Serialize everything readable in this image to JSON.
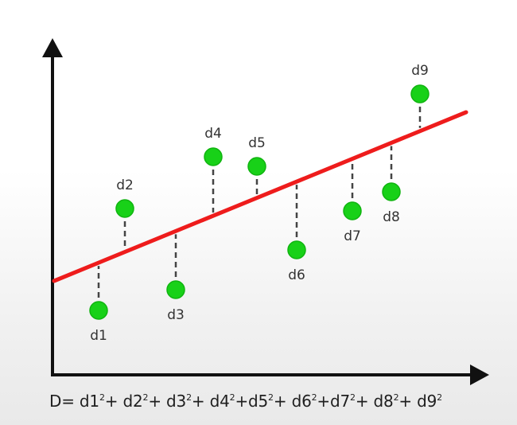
{
  "diagram": {
    "colors": {
      "axis": "#111111",
      "regression_line": "#ee1c1c",
      "point_fill": "#18d118",
      "point_stroke": "#10b410",
      "residual": "#444444",
      "label": "#333333"
    },
    "points": [
      {
        "label": "d1",
        "label_pos": "below"
      },
      {
        "label": "d2",
        "label_pos": "above"
      },
      {
        "label": "d3",
        "label_pos": "below"
      },
      {
        "label": "d4",
        "label_pos": "above"
      },
      {
        "label": "d5",
        "label_pos": "above"
      },
      {
        "label": "d6",
        "label_pos": "below"
      },
      {
        "label": "d7",
        "label_pos": "below"
      },
      {
        "label": "d8",
        "label_pos": "below"
      },
      {
        "label": "d9",
        "label_pos": "above"
      }
    ],
    "formula": {
      "prefix": "D= ",
      "terms": [
        "d1",
        "d2",
        "d3",
        "d4",
        "d5",
        "d6",
        "d7",
        "d8",
        "d9"
      ],
      "exponent": "2",
      "separators": [
        "+ ",
        "+ ",
        "+ ",
        "+",
        "+ ",
        "+",
        "+ ",
        "+ "
      ]
    }
  }
}
